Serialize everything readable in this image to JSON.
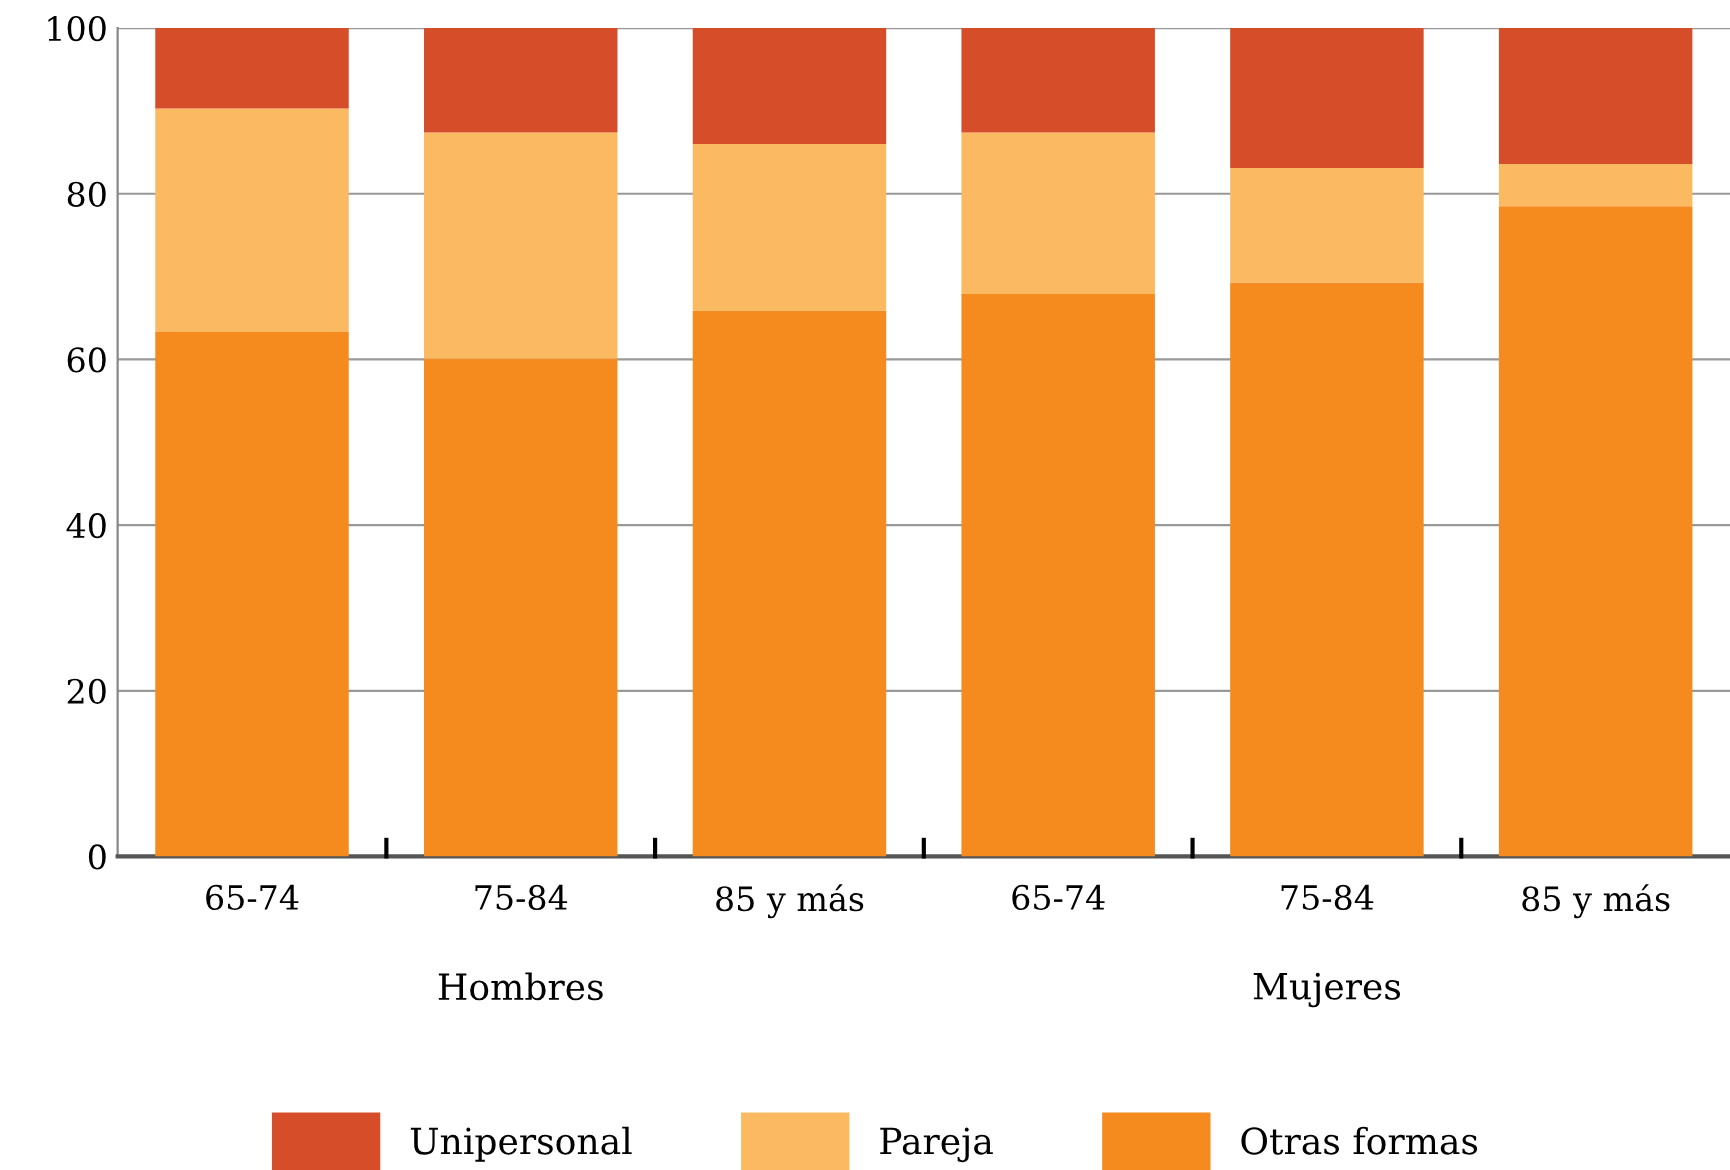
{
  "chart_data": {
    "type": "bar",
    "stacked": true,
    "categories": [
      "65-74",
      "75-84",
      "85 y más",
      "65-74",
      "75-84",
      "85 y más"
    ],
    "series": [
      {
        "name": "Otras formas",
        "color": "#f58a1f",
        "values": [
          63.3,
          60.1,
          65.9,
          67.9,
          69.3,
          78.5
        ]
      },
      {
        "name": "Pareja",
        "color": "#fbb962",
        "values": [
          27,
          27.3,
          20.1,
          19.5,
          13.8,
          5.1
        ]
      },
      {
        "name": "Unipersonal",
        "color": "#d64d2a",
        "values": [
          9.7,
          12.6,
          14,
          12.6,
          16.9,
          16.4
        ]
      }
    ],
    "ylim": [
      0,
      100
    ],
    "yticks": [
      0,
      20,
      40,
      60,
      80,
      100
    ],
    "grid": "y",
    "legend": "bottom",
    "annotations": [
      "Hombres",
      "Mujeres"
    ]
  }
}
